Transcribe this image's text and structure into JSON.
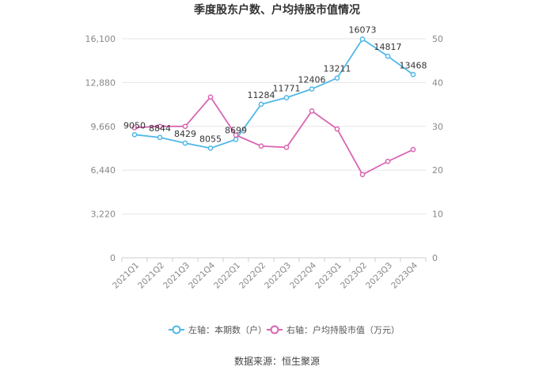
{
  "chart_data": {
    "type": "line",
    "title": "季度股东户数、户均持股市值情况",
    "categories": [
      "2021Q1",
      "2021Q2",
      "2021Q3",
      "2021Q4",
      "2022Q1",
      "2022Q2",
      "2022Q3",
      "2022Q4",
      "2023Q1",
      "2023Q2",
      "2023Q3",
      "2023Q4"
    ],
    "left_axis": {
      "ticks": [
        "0",
        "3,220",
        "6,440",
        "9,660",
        "12,880",
        "16,100"
      ],
      "ylim": [
        0,
        16100
      ]
    },
    "right_axis": {
      "ticks": [
        "0",
        "10",
        "20",
        "30",
        "40",
        "50"
      ],
      "ylim": [
        0,
        50
      ]
    },
    "series": [
      {
        "name": "左轴：本期数（户）",
        "axis": "left",
        "color": "#4fb8e8",
        "values": [
          9050,
          8844,
          8429,
          8055,
          8699,
          11284,
          11771,
          12406,
          13211,
          16073,
          14817,
          13468
        ],
        "labels": [
          "9050",
          "8844",
          "8429",
          "8055",
          "8699",
          "11284",
          "11771",
          "12406",
          "13211",
          "16073",
          "14817",
          "13468"
        ]
      },
      {
        "name": "右轴：户均持股市值（万元）",
        "axis": "right",
        "color": "#d966b3",
        "values": [
          29.7,
          30.0,
          30.0,
          36.7,
          28.0,
          25.5,
          25.2,
          33.5,
          29.4,
          19.0,
          22.0,
          24.7
        ]
      }
    ],
    "grid": true,
    "legend_position": "bottom"
  },
  "source_text": "数据来源：恒生聚源"
}
